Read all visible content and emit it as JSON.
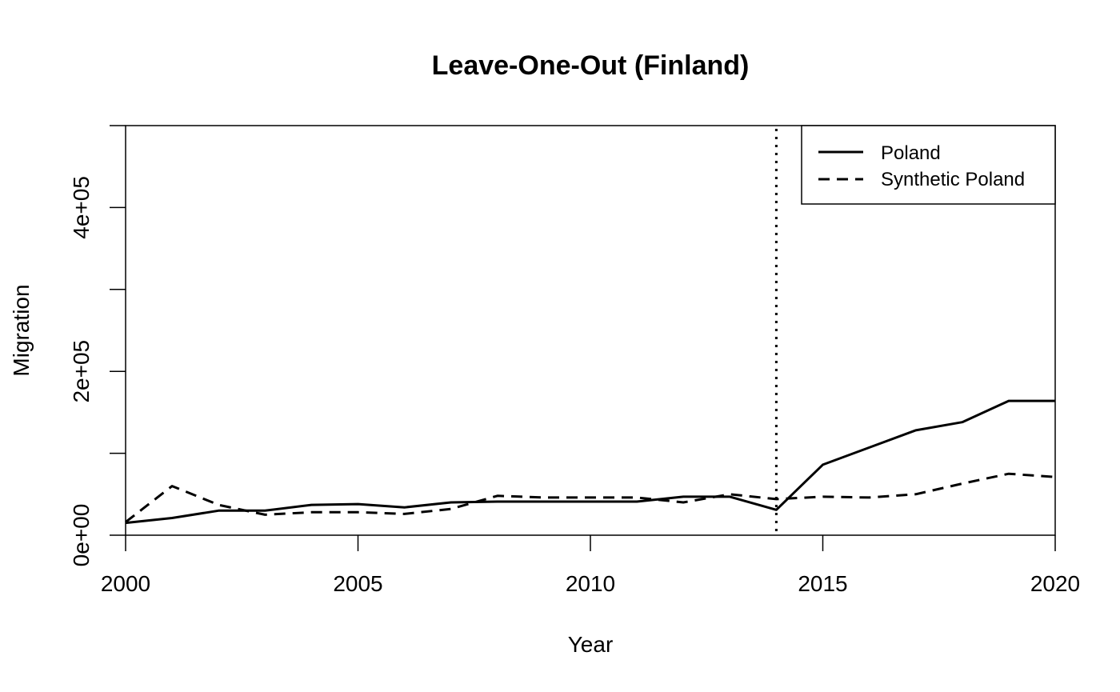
{
  "chart_data": {
    "type": "line",
    "title": "Leave-One-Out (Finland)",
    "xlabel": "Year",
    "ylabel": "Migration",
    "xlim": [
      2000,
      2020
    ],
    "ylim": [
      0,
      500000
    ],
    "x_ticks": [
      2000,
      2005,
      2010,
      2015,
      2020
    ],
    "x_tick_labels": [
      "2000",
      "2005",
      "2010",
      "2015",
      "2020"
    ],
    "y_ticks": [
      0,
      100000,
      200000,
      300000,
      400000,
      500000
    ],
    "y_tick_labels": [
      "0e+00",
      "2e+05",
      "4e+05"
    ],
    "y_labeled_ticks": [
      0,
      200000,
      400000
    ],
    "intervention_year": 2014,
    "legend_position": "top-right",
    "x": [
      2000,
      2001,
      2002,
      2003,
      2004,
      2005,
      2006,
      2007,
      2008,
      2009,
      2010,
      2011,
      2012,
      2013,
      2014,
      2015,
      2016,
      2017,
      2018,
      2019,
      2020
    ],
    "series": [
      {
        "name": "Poland",
        "style": "solid",
        "values": [
          15000,
          21000,
          30000,
          30000,
          37000,
          38000,
          34000,
          40000,
          41000,
          41000,
          41000,
          41000,
          47000,
          47000,
          31000,
          86000,
          107000,
          128000,
          138000,
          164000,
          164000
        ]
      },
      {
        "name": "Synthetic Poland",
        "style": "dashed",
        "values": [
          16000,
          60000,
          37000,
          25000,
          28000,
          28000,
          26000,
          32000,
          48000,
          46000,
          46000,
          46000,
          40000,
          50000,
          44000,
          47000,
          46000,
          50000,
          63000,
          75000,
          71000
        ]
      }
    ]
  }
}
